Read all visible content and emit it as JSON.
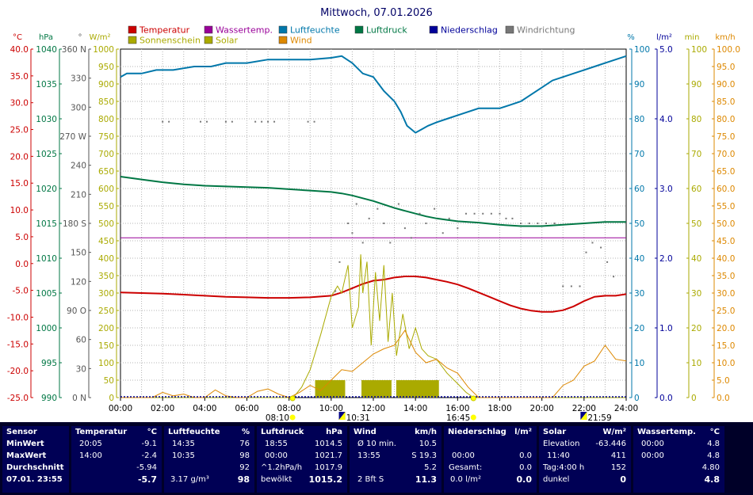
{
  "title": "Mittwoch, 07.01.2026",
  "colors": {
    "temperature": "#cc0000",
    "water_temp": "#990099",
    "humidity": "#0077aa",
    "pressure": "#007744",
    "precip": "#000099",
    "wind_dir": "#777777",
    "sunshine": "#aaaa00",
    "solar": "#aaaa00",
    "wind": "#dd8800",
    "grid": "#b4b4b4",
    "panel_bg": "#000055"
  },
  "chart_data": {
    "type": "line",
    "title": "Mittwoch, 07.01.2026",
    "legend": {
      "placement": "top",
      "entries": [
        {
          "label": "Temperatur",
          "color": "#cc0000"
        },
        {
          "label": "Wassertemp.",
          "color": "#990099"
        },
        {
          "label": "Luftfeuchte",
          "color": "#0077aa"
        },
        {
          "label": "Luftdruck",
          "color": "#007744"
        },
        {
          "label": "Niederschlag",
          "color": "#000099"
        },
        {
          "label": "Windrichtung",
          "color": "#777777"
        },
        {
          "label": "Sonnenschein",
          "color": "#aaaa00"
        },
        {
          "label": "Solar",
          "color": "#aaaa00"
        },
        {
          "label": "Wind",
          "color": "#dd8800"
        }
      ]
    },
    "x_ticks": [
      "00:00",
      "02:00",
      "04:00",
      "06:00",
      "08:00",
      "10:00",
      "12:00",
      "14:00",
      "16:00",
      "18:00",
      "20:00",
      "22:00",
      "24:00"
    ],
    "xlim": [
      0,
      24
    ],
    "grid": true,
    "axes": {
      "temp": {
        "unit": "°C",
        "color": "#cc0000",
        "range": [
          -25,
          40
        ],
        "ticks": [
          "40.0",
          "35.0",
          "30.0",
          "25.0",
          "20.0",
          "15.0",
          "10.0",
          "5.0",
          "0.0",
          "-5.0",
          "-10.0",
          "-15.0",
          "-20.0",
          "-25.0"
        ]
      },
      "pressure": {
        "unit": "hPa",
        "color": "#007744",
        "range": [
          990,
          1040
        ],
        "ticks": [
          "1040",
          "1035",
          "1030",
          "1025",
          "1020",
          "1015",
          "1010",
          "1005",
          "1000",
          "995",
          "990"
        ]
      },
      "direction": {
        "unit": "°",
        "color": "#555555",
        "range": [
          0,
          360
        ],
        "ticks": [
          "360 N",
          "330",
          "300",
          "270 W",
          "240",
          "210",
          "180 S",
          "150",
          "120",
          "90 O",
          "60",
          "30",
          "0 N"
        ]
      },
      "solar": {
        "unit": "W/m²",
        "color": "#aaaa00",
        "range": [
          0,
          1000
        ],
        "ticks": [
          "1000",
          "950",
          "900",
          "850",
          "800",
          "750",
          "700",
          "650",
          "600",
          "550",
          "500",
          "450",
          "400",
          "350",
          "300",
          "250",
          "200",
          "150",
          "100",
          "50",
          "0"
        ]
      },
      "humidity": {
        "unit": "%",
        "color": "#0077aa",
        "range": [
          0,
          100
        ],
        "ticks": [
          "100",
          "90",
          "80",
          "70",
          "60",
          "50",
          "40",
          "30",
          "20",
          "10",
          "0"
        ]
      },
      "precip": {
        "unit": "l/m²",
        "color": "#000099",
        "range": [
          0,
          5
        ],
        "ticks": [
          "5.0",
          "4.0",
          "3.0",
          "2.0",
          "1.0",
          "0.0"
        ]
      },
      "sunshine": {
        "unit": "min",
        "color": "#aaaa00",
        "range": [
          0,
          100
        ],
        "ticks": [
          "100",
          "90",
          "80",
          "70",
          "60",
          "50",
          "40",
          "30",
          "20",
          "10",
          "0"
        ]
      },
      "wind": {
        "unit": "km/h",
        "color": "#dd8800",
        "range": [
          0,
          100
        ],
        "ticks": [
          "100.0",
          "95.0",
          "90.0",
          "85.0",
          "80.0",
          "75.0",
          "70.0",
          "65.0",
          "60.0",
          "55.0",
          "50.0",
          "45.0",
          "40.0",
          "35.0",
          "30.0",
          "25.0",
          "20.0",
          "15.0",
          "10.0",
          "5.0",
          "0.0"
        ]
      }
    },
    "series": [
      {
        "name": "Temperatur",
        "axis": "temp",
        "color": "#cc0000",
        "x": [
          0,
          1,
          2,
          3,
          4,
          5,
          6,
          7,
          8,
          9,
          10,
          10.5,
          11,
          11.5,
          12,
          12.5,
          13,
          13.5,
          14,
          14.5,
          15,
          15.5,
          16,
          16.5,
          17,
          17.5,
          18,
          18.5,
          19,
          19.5,
          20,
          20.5,
          21,
          21.5,
          22,
          22.5,
          23,
          23.5,
          24
        ],
        "y": [
          -5.4,
          -5.5,
          -5.6,
          -5.8,
          -6.0,
          -6.2,
          -6.3,
          -6.4,
          -6.4,
          -6.3,
          -6.0,
          -5.4,
          -4.6,
          -3.8,
          -3.2,
          -3.0,
          -2.6,
          -2.4,
          -2.4,
          -2.6,
          -3.0,
          -3.4,
          -3.9,
          -4.6,
          -5.4,
          -6.2,
          -7.0,
          -7.8,
          -8.4,
          -8.8,
          -9.0,
          -9.0,
          -8.7,
          -8.0,
          -7.0,
          -6.2,
          -6.0,
          -6.0,
          -5.7
        ]
      },
      {
        "name": "Wassertemp.",
        "axis": "temp",
        "color": "#990099",
        "x": [
          0,
          24
        ],
        "y": [
          4.8,
          4.8
        ]
      },
      {
        "name": "Luftfeuchte",
        "axis": "humidity",
        "color": "#0077aa",
        "x": [
          0,
          0.3,
          1,
          1.7,
          2.5,
          3.5,
          4.3,
          5,
          6,
          7,
          8,
          9,
          10,
          10.5,
          11,
          11.5,
          12,
          12.5,
          13,
          13.3,
          13.6,
          14,
          14.3,
          14.6,
          15,
          15.5,
          16,
          17,
          18,
          18.5,
          19,
          19.5,
          20,
          20.5,
          21,
          21.5,
          22,
          22.5,
          23,
          23.5,
          24
        ],
        "y": [
          92,
          93,
          93,
          94,
          94,
          95,
          95,
          96,
          96,
          97,
          97,
          97,
          97.5,
          98,
          96,
          93,
          92,
          88,
          85,
          82,
          78,
          76,
          77,
          78,
          79,
          80,
          81,
          83,
          83,
          84,
          85,
          87,
          89,
          91,
          92,
          93,
          94,
          95,
          96,
          97,
          98
        ]
      },
      {
        "name": "Luftdruck",
        "axis": "pressure",
        "color": "#007744",
        "x": [
          0,
          1,
          2,
          3,
          4,
          5,
          6,
          7,
          8,
          9,
          10,
          10.5,
          11,
          11.5,
          12,
          12.5,
          13,
          13.5,
          14,
          14.5,
          15,
          15.5,
          16,
          17,
          18,
          19,
          20,
          21,
          22,
          23,
          24
        ],
        "y": [
          1021.7,
          1021.3,
          1020.9,
          1020.6,
          1020.4,
          1020.3,
          1020.2,
          1020.1,
          1019.9,
          1019.7,
          1019.5,
          1019.3,
          1019.0,
          1018.6,
          1018.2,
          1017.7,
          1017.2,
          1016.8,
          1016.4,
          1016.0,
          1015.7,
          1015.5,
          1015.3,
          1015.1,
          1014.8,
          1014.6,
          1014.6,
          1014.8,
          1015.0,
          1015.2,
          1015.2
        ]
      },
      {
        "name": "Solar",
        "axis": "solar",
        "color": "#aaaa00",
        "x": [
          0,
          8.2,
          8.6,
          9,
          9.5,
          10,
          10.3,
          10.5,
          10.8,
          11,
          11.3,
          11.4,
          11.5,
          11.7,
          11.9,
          12.1,
          12.3,
          12.5,
          12.7,
          12.9,
          13.1,
          13.4,
          13.7,
          14,
          14.3,
          14.6,
          15,
          15.5,
          16,
          16.4,
          16.75,
          24
        ],
        "y": [
          0,
          0,
          30,
          80,
          180,
          290,
          320,
          300,
          380,
          200,
          260,
          411,
          300,
          390,
          150,
          360,
          220,
          380,
          160,
          300,
          120,
          240,
          140,
          200,
          140,
          120,
          110,
          70,
          40,
          15,
          0,
          0
        ]
      },
      {
        "name": "Wind",
        "axis": "wind",
        "color": "#dd8800",
        "x": [
          0,
          1.5,
          2,
          2.5,
          3,
          3.5,
          4,
          4.5,
          5,
          5.5,
          6,
          6.5,
          7,
          7.5,
          8,
          8.5,
          9,
          9.5,
          10,
          10.5,
          11,
          11.5,
          12,
          12.5,
          13,
          13.5,
          14,
          14.5,
          15,
          15.5,
          16,
          16.5,
          17,
          20.5,
          21,
          21.5,
          22,
          22.5,
          23,
          23.5,
          24
        ],
        "y": [
          0,
          0,
          1.5,
          0.5,
          1.0,
          0,
          0,
          2.2,
          0.5,
          0,
          0,
          1.8,
          2.5,
          1.0,
          0,
          1.5,
          3.5,
          2.0,
          5.0,
          8.0,
          7.5,
          10.0,
          12.5,
          14.0,
          15.0,
          19.3,
          13.0,
          10.0,
          11.0,
          8.5,
          7.0,
          3.0,
          0,
          0,
          3.5,
          5.0,
          9.0,
          10.5,
          15.0,
          11.0,
          10.5
        ]
      },
      {
        "name": "Windrichtung",
        "axis": "direction",
        "color": "#777777",
        "style": "dots",
        "x": [
          2,
          2.3,
          3.8,
          4.1,
          5.0,
          5.3,
          6.4,
          6.7,
          7.0,
          7.3,
          8.9,
          9.2,
          10.2,
          10.4,
          10.8,
          11.0,
          11.2,
          11.5,
          11.8,
          12.2,
          12.5,
          12.8,
          13.2,
          13.5,
          13.8,
          14.2,
          14.5,
          14.9,
          15.3,
          15.6,
          16.0,
          16.4,
          16.8,
          17.2,
          17.6,
          18.0,
          18.3,
          18.6,
          19.0,
          19.4,
          19.8,
          20.2,
          20.6,
          21.0,
          21.4,
          21.8,
          22.1,
          22.4,
          22.8,
          23.1,
          23.4
        ],
        "y": [
          285,
          285,
          285,
          285,
          285,
          285,
          285,
          285,
          285,
          285,
          285,
          285,
          110,
          140,
          180,
          170,
          200,
          160,
          185,
          195,
          180,
          160,
          200,
          175,
          165,
          190,
          180,
          195,
          170,
          185,
          175,
          190,
          190,
          190,
          190,
          190,
          185,
          185,
          180,
          180,
          180,
          180,
          180,
          115,
          115,
          115,
          150,
          160,
          155,
          140,
          125
        ]
      }
    ],
    "sunshine_bars": {
      "axis": "sunshine",
      "x": [
        9.35,
        9.55,
        9.75,
        9.95,
        10.15,
        10.35,
        10.55,
        11.55,
        11.75,
        11.95,
        12.15,
        12.35,
        12.55,
        12.75,
        13.2,
        13.4,
        13.6,
        13.8,
        14.0,
        14.2,
        14.4,
        14.6,
        14.8,
        15.0
      ],
      "y": [
        5,
        5,
        5,
        5,
        5,
        5,
        5,
        5,
        5,
        5,
        5,
        5,
        5,
        5,
        5,
        5,
        5,
        5,
        5,
        5,
        5,
        5,
        5,
        5
      ]
    },
    "sun_markers": [
      {
        "time": "08:10",
        "kind": "sunrise"
      },
      {
        "time": "10:31",
        "kind": "moonset"
      },
      {
        "time": "16:45",
        "kind": "sunset"
      },
      {
        "time": "21:59",
        "kind": "moonrise"
      }
    ]
  },
  "summary": {
    "row_labels": [
      "Sensor",
      "MinWert",
      "MaxWert",
      "Durchschnitt",
      "07.01. 23:55"
    ],
    "temperature": {
      "title": "Temperatur",
      "unit": "°C",
      "min_time": "20:05",
      "min": "-9.1",
      "max_time": "14:00",
      "max": "-2.4",
      "avg": "-5.94",
      "current": "-5.7"
    },
    "humidity": {
      "title": "Luftfeuchte",
      "unit": "%",
      "min_time": "14:35",
      "min": "76",
      "max_time": "10:35",
      "max": "98",
      "avg": "92",
      "extra": "3.17 g/m³",
      "current": "98"
    },
    "pressure": {
      "title": "Luftdruck",
      "unit": "hPa",
      "min_time": "18:55",
      "min": "1014.5",
      "max_time": "00:00",
      "max": "1021.7",
      "trend": "^1.2hPa/h",
      "avg": "1017.9",
      "state": "bewölkt",
      "current": "1015.2"
    },
    "wind": {
      "title": "Wind",
      "unit": "km/h",
      "avg_label": "Ø 10 min.",
      "avg10": "10.5",
      "max_time": "13:55",
      "max": "S 19.3",
      "avg": "5.2",
      "beaufort": "2 Bft S",
      "current": "11.3"
    },
    "precip": {
      "title": "Niederschlag",
      "unit": "l/m²",
      "max_time": "00:00",
      "max": "0.0",
      "total_label": "Gesamt:",
      "total": "0.0",
      "rate": "0.0 l/m²",
      "current": "0.0"
    },
    "solar": {
      "title": "Solar",
      "unit": "W/m²",
      "elev_label": "Elevation",
      "elevation": "-63.446",
      "max_time": "11:40",
      "max": "411",
      "day_label": "Tag:4:00 h",
      "avg": "152",
      "state": "dunkel",
      "current": "0"
    },
    "water": {
      "title": "Wassertemp.",
      "unit": "°C",
      "min_time": "00:00",
      "min": "4.8",
      "max_time": "00:00",
      "max": "4.8",
      "avg": "4.80",
      "current": "4.8"
    }
  }
}
